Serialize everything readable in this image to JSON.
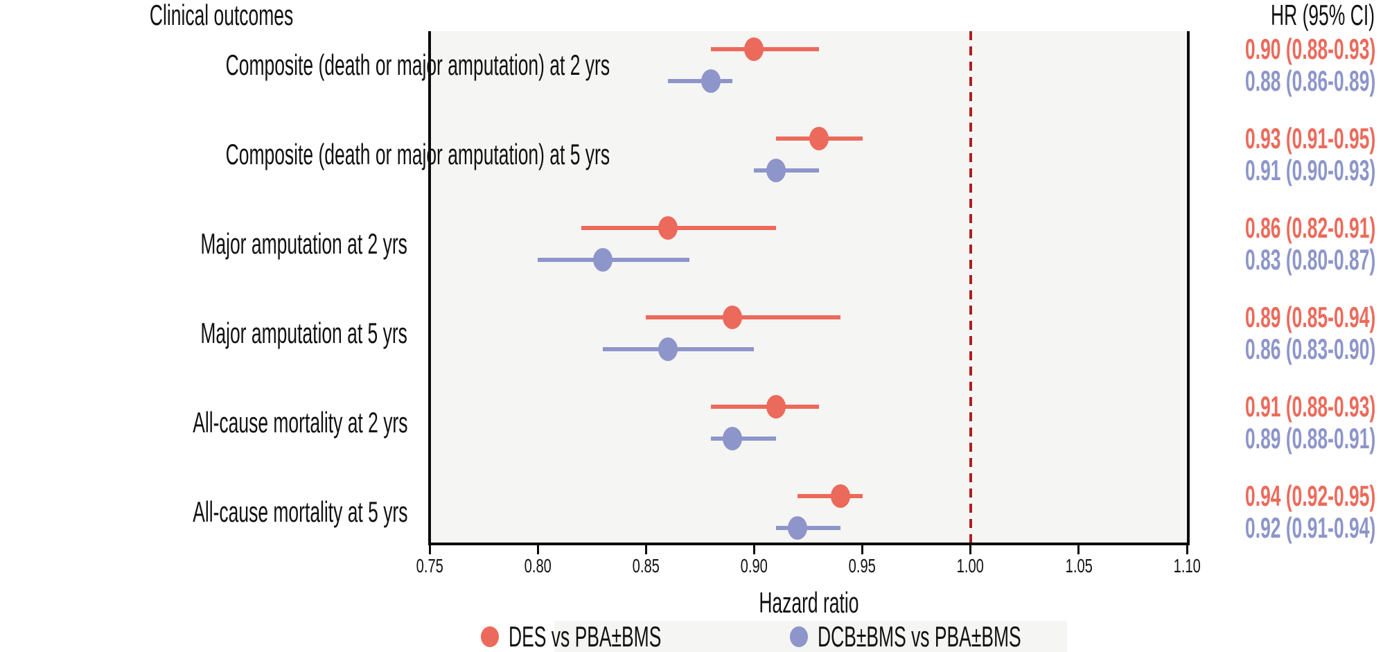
{
  "title": "Clinical outcomes",
  "hr_header": "HR (95% CI)",
  "xlabel": "Hazard ratio",
  "colors": {
    "des": "#ec6a5b",
    "dcb": "#8d95ca",
    "reference_line": "#b01e1e",
    "plot_background": "#f5f5f3",
    "legend_background": "#f5f5f4",
    "axis": "#0a0a0a"
  },
  "legend": {
    "items": [
      {
        "name": "des",
        "label": "DES vs PBA±BMS",
        "color": "#ec6a5b"
      },
      {
        "name": "dcb",
        "label": "DCB±BMS vs PBA±BMS",
        "color": "#8d95ca"
      }
    ]
  },
  "chart_data": {
    "type": "forest",
    "title": "Clinical outcomes",
    "xlabel": "Hazard ratio",
    "value_column_header": "HR (95% CI)",
    "xlim": [
      0.75,
      1.1
    ],
    "xticks": [
      {
        "value": 0.75,
        "label": "0.75"
      },
      {
        "value": 0.8,
        "label": "0.80"
      },
      {
        "value": 0.85,
        "label": "0.85"
      },
      {
        "value": 0.9,
        "label": "0.90"
      },
      {
        "value": 0.95,
        "label": "0.95"
      },
      {
        "value": 1.0,
        "label": "1.00"
      },
      {
        "value": 1.05,
        "label": "1.05"
      },
      {
        "value": 1.1,
        "label": "1.10"
      }
    ],
    "reference_line": 1.0,
    "series_names": [
      "DES vs PBA±BMS",
      "DCB±BMS vs PBA±BMS"
    ],
    "rows": [
      {
        "outcome": "Composite (death or major amputation) at 2 yrs",
        "des": {
          "hr": 0.9,
          "lo": 0.88,
          "hi": 0.93,
          "label": "0.90 (0.88-0.93)"
        },
        "dcb": {
          "hr": 0.88,
          "lo": 0.86,
          "hi": 0.89,
          "label": "0.88 (0.86-0.89)"
        }
      },
      {
        "outcome": "Composite (death or major amputation) at 5 yrs",
        "des": {
          "hr": 0.93,
          "lo": 0.91,
          "hi": 0.95,
          "label": "0.93 (0.91-0.95)"
        },
        "dcb": {
          "hr": 0.91,
          "lo": 0.9,
          "hi": 0.93,
          "label": "0.91 (0.90-0.93)"
        }
      },
      {
        "outcome": "Major amputation at 2 yrs",
        "des": {
          "hr": 0.86,
          "lo": 0.82,
          "hi": 0.91,
          "label": "0.86 (0.82-0.91)"
        },
        "dcb": {
          "hr": 0.83,
          "lo": 0.8,
          "hi": 0.87,
          "label": "0.83 (0.80-0.87)"
        }
      },
      {
        "outcome": "Major amputation at 5 yrs",
        "des": {
          "hr": 0.89,
          "lo": 0.85,
          "hi": 0.94,
          "label": "0.89 (0.85-0.94)"
        },
        "dcb": {
          "hr": 0.86,
          "lo": 0.83,
          "hi": 0.9,
          "label": "0.86 (0.83-0.90)"
        }
      },
      {
        "outcome": "All-cause mortality at 2 yrs",
        "des": {
          "hr": 0.91,
          "lo": 0.88,
          "hi": 0.93,
          "label": "0.91 (0.88-0.93)"
        },
        "dcb": {
          "hr": 0.89,
          "lo": 0.88,
          "hi": 0.91,
          "label": "0.89 (0.88-0.91)"
        }
      },
      {
        "outcome": "All-cause mortality at 5 yrs",
        "des": {
          "hr": 0.94,
          "lo": 0.92,
          "hi": 0.95,
          "label": "0.94 (0.92-0.95)"
        },
        "dcb": {
          "hr": 0.92,
          "lo": 0.91,
          "hi": 0.94,
          "label": "0.92 (0.91-0.94)"
        }
      }
    ]
  }
}
